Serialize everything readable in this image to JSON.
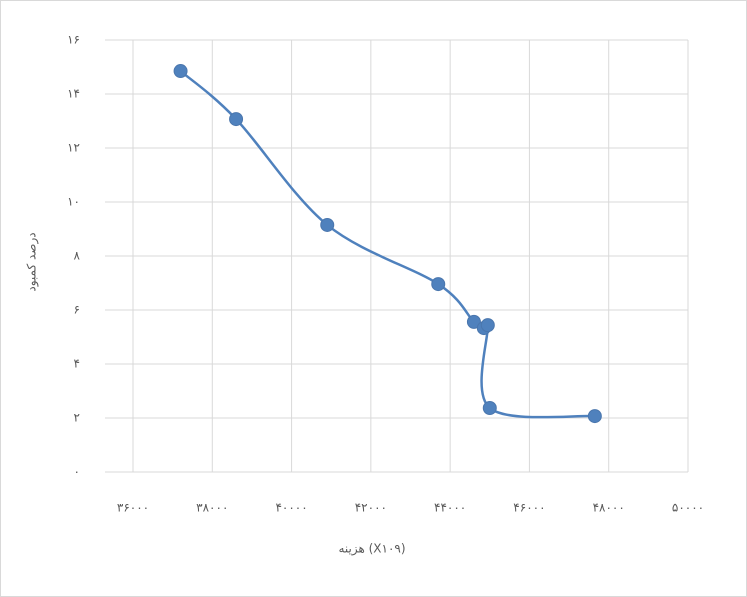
{
  "chart_data": {
    "type": "scatter",
    "x_label": "هزینه (X۱۰۹)",
    "y_label": "درصد کمبود",
    "x": [
      37200,
      38600,
      40900,
      43700,
      44600,
      44850,
      44950,
      45000,
      47650
    ],
    "series": [
      {
        "color": "#4f81bd",
        "values": [
          14.85,
          13.07,
          9.15,
          6.96,
          5.56,
          5.33,
          5.44,
          2.37,
          2.07
        ]
      }
    ],
    "xlim": [
      36000,
      50000
    ],
    "ylim": [
      0,
      16
    ],
    "xticks": [
      {
        "value": 36000,
        "label": "۳۶۰۰۰"
      },
      {
        "value": 38000,
        "label": "۳۸۰۰۰"
      },
      {
        "value": 40000,
        "label": "۴۰۰۰۰"
      },
      {
        "value": 42000,
        "label": "۴۲۰۰۰"
      },
      {
        "value": 44000,
        "label": "۴۴۰۰۰"
      },
      {
        "value": 46000,
        "label": "۴۶۰۰۰"
      },
      {
        "value": 48000,
        "label": "۴۸۰۰۰"
      },
      {
        "value": 50000,
        "label": "۵۰۰۰۰"
      }
    ],
    "yticks": [
      {
        "value": 0,
        "label": "۰"
      },
      {
        "value": 2,
        "label": "۲"
      },
      {
        "value": 4,
        "label": "۴"
      },
      {
        "value": 6,
        "label": "۶"
      },
      {
        "value": 8,
        "label": "۸"
      },
      {
        "value": 10,
        "label": "۱۰"
      },
      {
        "value": 12,
        "label": "۱۲"
      },
      {
        "value": 14,
        "label": "۱۴"
      },
      {
        "value": 16,
        "label": "۱۶"
      }
    ],
    "grid": true,
    "smooth": true
  }
}
